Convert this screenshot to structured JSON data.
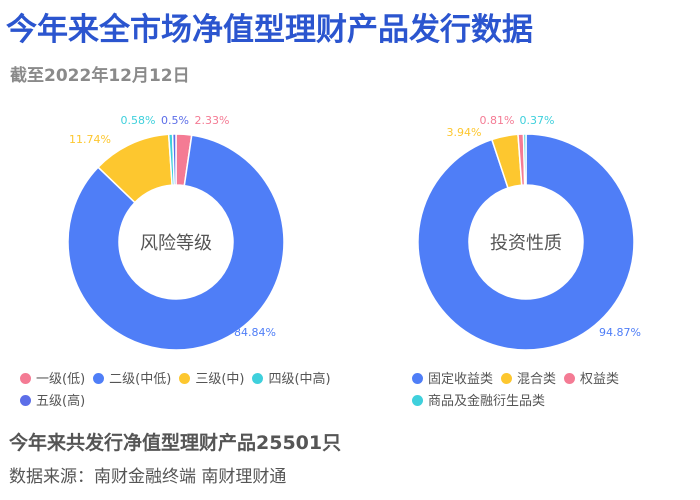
{
  "header": {
    "title": "今年来全市场净值型理财产品发行数据",
    "subtitle": "截至2022年12月12日"
  },
  "colors": {
    "blue": "#4f7ef7",
    "yellow": "#fdc72f",
    "pink": "#f47b94",
    "cyan": "#3fd0dc",
    "indigo": "#5c6ee8"
  },
  "chart_data": [
    {
      "type": "pie",
      "variant": "donut",
      "center_label": "风险等级",
      "series": [
        {
          "name": "一级(低)",
          "value": 2.33,
          "label": "2.33%",
          "color": "#f47b94"
        },
        {
          "name": "二级(中低)",
          "value": 84.84,
          "label": "84.84%",
          "color": "#4f7ef7"
        },
        {
          "name": "三级(中)",
          "value": 11.74,
          "label": "11.74%",
          "color": "#fdc72f"
        },
        {
          "name": "四级(中高)",
          "value": 0.58,
          "label": "0.58%",
          "color": "#3fd0dc"
        },
        {
          "name": "五级(高)",
          "value": 0.5,
          "label": "0.5%",
          "color": "#5c6ee8"
        }
      ],
      "legend_position": "bottom"
    },
    {
      "type": "pie",
      "variant": "donut",
      "center_label": "投资性质",
      "series": [
        {
          "name": "固定收益类",
          "value": 94.87,
          "label": "94.87%",
          "color": "#4f7ef7"
        },
        {
          "name": "混合类",
          "value": 3.94,
          "label": "3.94%",
          "color": "#fdc72f"
        },
        {
          "name": "权益类",
          "value": 0.81,
          "label": "0.81%",
          "color": "#f47b94"
        },
        {
          "name": "商品及金融衍生品类",
          "value": 0.37,
          "label": "0.37%",
          "color": "#3fd0dc"
        }
      ],
      "legend_position": "bottom"
    }
  ],
  "footer": {
    "total": "今年来共发行净值型理财产品25501只",
    "source": "数据来源：南财金融终端 南财理财通"
  }
}
